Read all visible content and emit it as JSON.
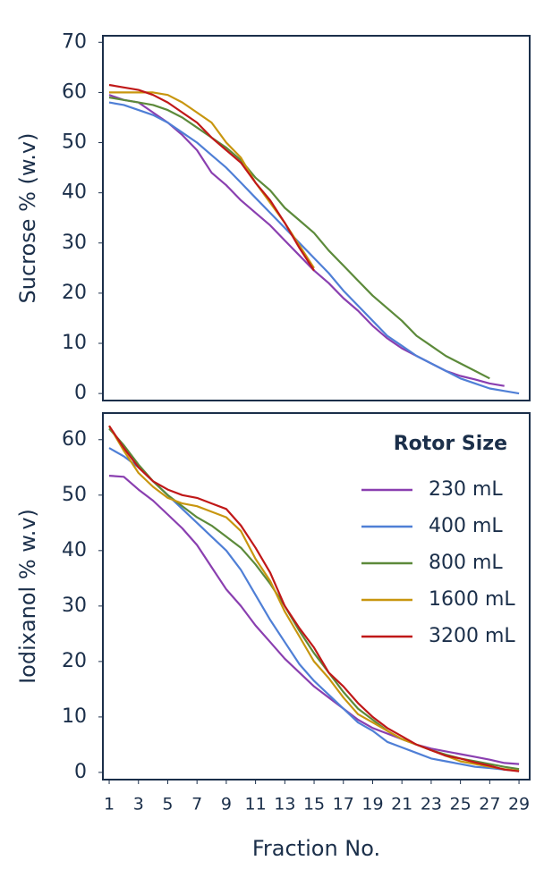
{
  "chart_data": [
    {
      "type": "line",
      "ylabel": "Sucrose % (w.v)",
      "x": [
        1,
        2,
        3,
        4,
        5,
        6,
        7,
        8,
        9,
        10,
        11,
        12,
        13,
        14,
        15,
        16,
        17,
        18,
        19,
        20,
        21,
        22,
        23,
        24,
        25,
        26,
        27,
        28,
        29
      ],
      "xlim": [
        0.57,
        29.73
      ],
      "ylim": [
        -1.4,
        71.3
      ],
      "yticks": [
        0,
        10,
        20,
        30,
        40,
        50,
        60,
        70
      ],
      "series": [
        {
          "color": "#8a3fb0",
          "values": [
            59.5,
            58.5,
            58,
            56,
            54,
            51.5,
            48.5,
            44,
            41.5,
            38.5,
            36,
            33.5,
            30.5,
            27.5,
            24.5,
            22,
            19,
            16.5,
            13.5,
            11,
            9,
            7.5,
            6,
            4.5,
            3.5,
            2.8,
            2,
            1.5,
            null
          ]
        },
        {
          "color": "#4f7fd6",
          "values": [
            58,
            57.5,
            56.5,
            55.5,
            54,
            52,
            50,
            47.5,
            45,
            42,
            39,
            36,
            33,
            30,
            27,
            24,
            20.5,
            17.5,
            14.5,
            11.5,
            9.5,
            7.5,
            6,
            4.5,
            3,
            2,
            1,
            0.5,
            0
          ]
        },
        {
          "color": "#5c8a3a",
          "values": [
            59,
            58.5,
            58,
            57.5,
            56.5,
            55,
            53,
            51,
            49,
            46.5,
            43,
            40.5,
            37,
            34.5,
            32,
            28.5,
            25.5,
            22.5,
            19.5,
            17,
            14.5,
            11.5,
            9.5,
            7.5,
            6,
            4.5,
            3,
            null,
            null
          ]
        },
        {
          "color": "#c8960f",
          "values": [
            60,
            60,
            60,
            60,
            59.5,
            58,
            56,
            54,
            50,
            47,
            42,
            38,
            34,
            29.5,
            25,
            null,
            null,
            null,
            null,
            null,
            null,
            null,
            null,
            null,
            null,
            null,
            null,
            null,
            null
          ]
        },
        {
          "color": "#c01818",
          "values": [
            61.5,
            61,
            60.5,
            59.5,
            58,
            56,
            54,
            51,
            48.5,
            46,
            42,
            38.5,
            34,
            29,
            24.5,
            null,
            null,
            null,
            null,
            null,
            null,
            null,
            null,
            null,
            null,
            null,
            null,
            null,
            null
          ]
        }
      ]
    },
    {
      "type": "line",
      "ylabel": "Iodixanol % w.v)",
      "xlabel": "Fraction No.",
      "legend_title": "Rotor Size",
      "legend": "upper right",
      "x": [
        1,
        2,
        3,
        4,
        5,
        6,
        7,
        8,
        9,
        10,
        11,
        12,
        13,
        14,
        15,
        16,
        17,
        18,
        19,
        20,
        21,
        22,
        23,
        24,
        25,
        26,
        27,
        28,
        29
      ],
      "xlim": [
        0.57,
        29.73
      ],
      "xticks": [
        1,
        3,
        5,
        7,
        9,
        11,
        13,
        15,
        17,
        19,
        21,
        23,
        25,
        27,
        29
      ],
      "ylim": [
        -1.3,
        64.8
      ],
      "yticks": [
        0,
        10,
        20,
        30,
        40,
        50,
        60
      ],
      "series": [
        {
          "name": "230 mL",
          "color": "#8a3fb0",
          "values": [
            53.5,
            53.3,
            51,
            49,
            46.5,
            44,
            41,
            37,
            33,
            30,
            26.5,
            23.5,
            20.5,
            18,
            15.5,
            13.5,
            11.5,
            9.5,
            8,
            7,
            6,
            5,
            4.3,
            3.8,
            3.3,
            2.8,
            2.3,
            1.7,
            1.5
          ]
        },
        {
          "name": "400 mL",
          "color": "#4f7fd6",
          "values": [
            58.5,
            57,
            55,
            52.5,
            50,
            47.5,
            45,
            42.5,
            40,
            36.5,
            32,
            27.5,
            23.5,
            19.5,
            16.5,
            14,
            11.5,
            9,
            7.5,
            5.5,
            4.5,
            3.5,
            2.5,
            2,
            1.5,
            1,
            0.8,
            0.5,
            0.3
          ]
        },
        {
          "name": "800 mL",
          "color": "#5c8a3a",
          "values": [
            62,
            59,
            55.5,
            52.5,
            50,
            48,
            46,
            44.5,
            42.5,
            40.5,
            37.5,
            34,
            30,
            25.5,
            21.5,
            18,
            14.5,
            11.5,
            9.5,
            7.5,
            6,
            5,
            4,
            3.2,
            2.5,
            2,
            1.5,
            1,
            0.6
          ]
        },
        {
          "name": "1600 mL",
          "color": "#c8960f",
          "values": [
            62.5,
            58,
            54,
            51.5,
            49.5,
            48.5,
            48,
            47,
            46,
            43.5,
            38.5,
            34.5,
            29,
            24.5,
            20,
            17,
            13.5,
            10.5,
            9,
            7.5,
            6,
            5,
            4,
            3,
            2,
            1.5,
            1,
            0.6,
            0.3
          ]
        },
        {
          "name": "3200 mL",
          "color": "#c01818",
          "values": [
            62.5,
            58.5,
            55,
            52.5,
            51,
            50,
            49.5,
            48.5,
            47.5,
            44.5,
            40.5,
            36,
            30,
            26,
            22.5,
            18,
            15.5,
            12.5,
            10,
            8,
            6.5,
            5,
            4,
            3,
            2.5,
            1.8,
            1.2,
            0.5,
            0.2
          ]
        }
      ]
    }
  ]
}
